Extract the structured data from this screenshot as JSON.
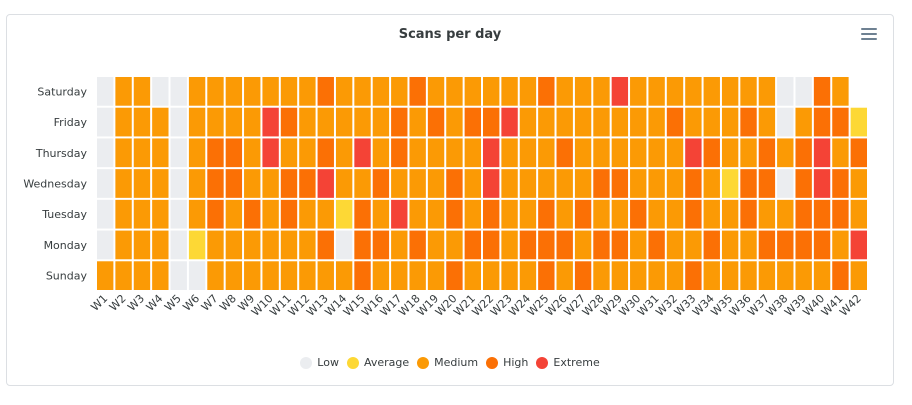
{
  "chart_data": {
    "type": "heatmap",
    "title": "Scans per day",
    "weeks": [
      "W1",
      "W2",
      "W3",
      "W4",
      "W5",
      "W6",
      "W7",
      "W8",
      "W9",
      "W10",
      "W11",
      "W12",
      "W13",
      "W14",
      "W15",
      "W16",
      "W17",
      "W18",
      "W19",
      "W20",
      "W21",
      "W22",
      "W23",
      "W24",
      "W25",
      "W26",
      "W27",
      "W28",
      "W29",
      "W30",
      "W31",
      "W32",
      "W33",
      "W34",
      "W35",
      "W36",
      "W37",
      "W38",
      "W39",
      "W40",
      "W41",
      "W42"
    ],
    "days": [
      "Saturday",
      "Friday",
      "Thursday",
      "Wednesday",
      "Tuesday",
      "Monday",
      "Sunday"
    ],
    "levels": [
      {
        "name": "Low",
        "color": "#ebedf0"
      },
      {
        "name": "Average",
        "color": "#fdd835"
      },
      {
        "name": "Medium",
        "color": "#fb9a05"
      },
      {
        "name": "High",
        "color": "#fb7005"
      },
      {
        "name": "Extreme",
        "color": "#f44336"
      }
    ],
    "grid": [
      [
        0,
        2,
        2,
        0,
        0,
        2,
        2,
        2,
        2,
        2,
        2,
        2,
        3,
        2,
        2,
        2,
        2,
        3,
        2,
        2,
        2,
        2,
        2,
        2,
        3,
        2,
        2,
        2,
        4,
        2,
        2,
        2,
        2,
        2,
        2,
        2,
        2,
        0,
        0,
        3,
        2,
        null
      ],
      [
        0,
        2,
        2,
        2,
        0,
        2,
        2,
        2,
        2,
        4,
        3,
        2,
        2,
        2,
        2,
        2,
        3,
        2,
        3,
        2,
        3,
        3,
        4,
        2,
        2,
        2,
        2,
        2,
        2,
        2,
        2,
        3,
        2,
        2,
        2,
        3,
        2,
        0,
        2,
        3,
        3,
        1
      ],
      [
        0,
        2,
        2,
        2,
        0,
        2,
        3,
        3,
        2,
        4,
        2,
        2,
        3,
        2,
        4,
        2,
        3,
        2,
        2,
        2,
        2,
        4,
        2,
        2,
        2,
        3,
        2,
        2,
        2,
        2,
        2,
        2,
        4,
        3,
        2,
        2,
        3,
        2,
        3,
        4,
        2,
        3
      ],
      [
        0,
        2,
        2,
        2,
        0,
        2,
        3,
        3,
        2,
        2,
        3,
        3,
        4,
        2,
        2,
        3,
        2,
        2,
        2,
        3,
        2,
        4,
        2,
        2,
        2,
        2,
        2,
        3,
        3,
        2,
        2,
        2,
        3,
        2,
        1,
        3,
        3,
        0,
        3,
        4,
        3,
        2
      ],
      [
        0,
        2,
        2,
        2,
        0,
        2,
        3,
        2,
        3,
        2,
        3,
        2,
        2,
        1,
        3,
        2,
        4,
        2,
        2,
        3,
        2,
        3,
        2,
        2,
        3,
        2,
        3,
        2,
        2,
        3,
        2,
        2,
        3,
        2,
        2,
        3,
        2,
        2,
        3,
        3,
        3,
        2
      ],
      [
        0,
        2,
        2,
        2,
        0,
        1,
        2,
        2,
        2,
        2,
        2,
        2,
        3,
        0,
        3,
        3,
        2,
        3,
        2,
        2,
        3,
        3,
        2,
        3,
        3,
        3,
        2,
        3,
        3,
        2,
        3,
        2,
        2,
        3,
        2,
        2,
        3,
        3,
        3,
        3,
        2,
        4
      ],
      [
        2,
        2,
        2,
        2,
        0,
        0,
        2,
        2,
        2,
        2,
        2,
        2,
        2,
        2,
        3,
        2,
        2,
        2,
        2,
        3,
        2,
        2,
        2,
        2,
        3,
        2,
        3,
        2,
        2,
        2,
        2,
        2,
        3,
        2,
        2,
        2,
        2,
        2,
        2,
        2,
        3,
        2
      ]
    ]
  }
}
